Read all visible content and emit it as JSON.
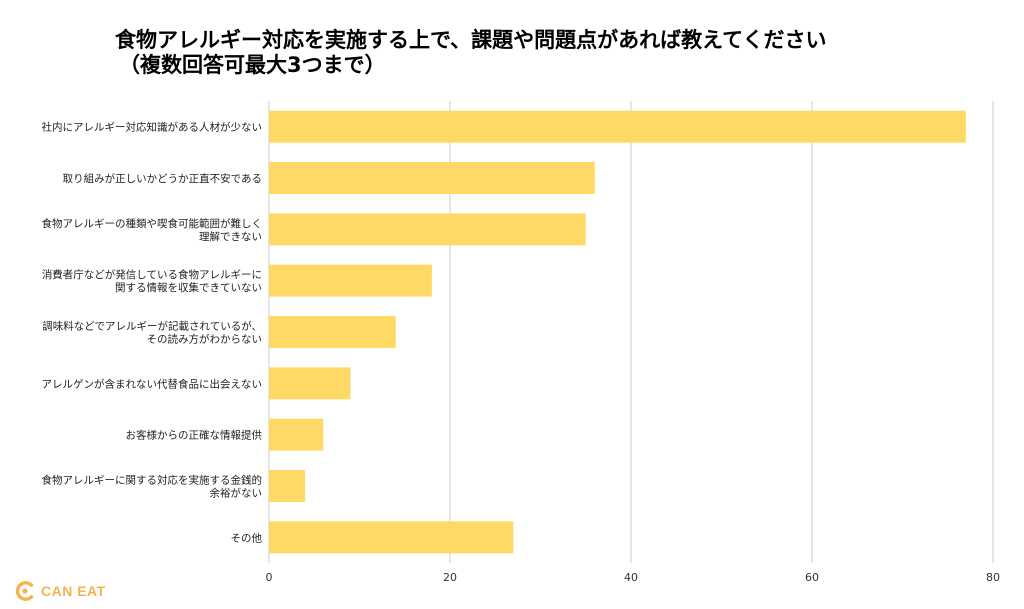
{
  "title": {
    "line1": "食物アレルギー対応を実施する上で、課題や問題点があれば教えてください",
    "line2": "（複数回答可最大3つまで）"
  },
  "logo": {
    "text": "CAN EAT",
    "icon": "can-eat-logo-icon",
    "color": "#F5B34A"
  },
  "chart_data": {
    "type": "bar",
    "orientation": "horizontal",
    "categories": [
      [
        "社内にアレルギー対応知識がある人材が少ない"
      ],
      [
        "取り組みが正しいかどうか正直不安である"
      ],
      [
        "食物アレルギーの種類や喫食可能範囲が難しく",
        "理解できない"
      ],
      [
        "消費者庁などが発信している食物アレルギーに",
        "関する情報を収集できていない"
      ],
      [
        "調味料などでアレルギーが記載されているが、",
        "その読み方がわからない"
      ],
      [
        "アレルゲンが含まれない代替食品に出会えない"
      ],
      [
        "お客様からの正確な情報提供"
      ],
      [
        "食物アレルギーに関する対応を実施する金銭的",
        "余裕がない"
      ],
      [
        "その他"
      ]
    ],
    "values": [
      77,
      36,
      35,
      18,
      14,
      9,
      6,
      4,
      27
    ],
    "xlim": [
      0,
      80
    ],
    "xticks": [
      0,
      20,
      40,
      60,
      80
    ],
    "grid": true,
    "legend": "none",
    "bar_color": "#FFD966",
    "grid_color": "#CCCCCC"
  }
}
